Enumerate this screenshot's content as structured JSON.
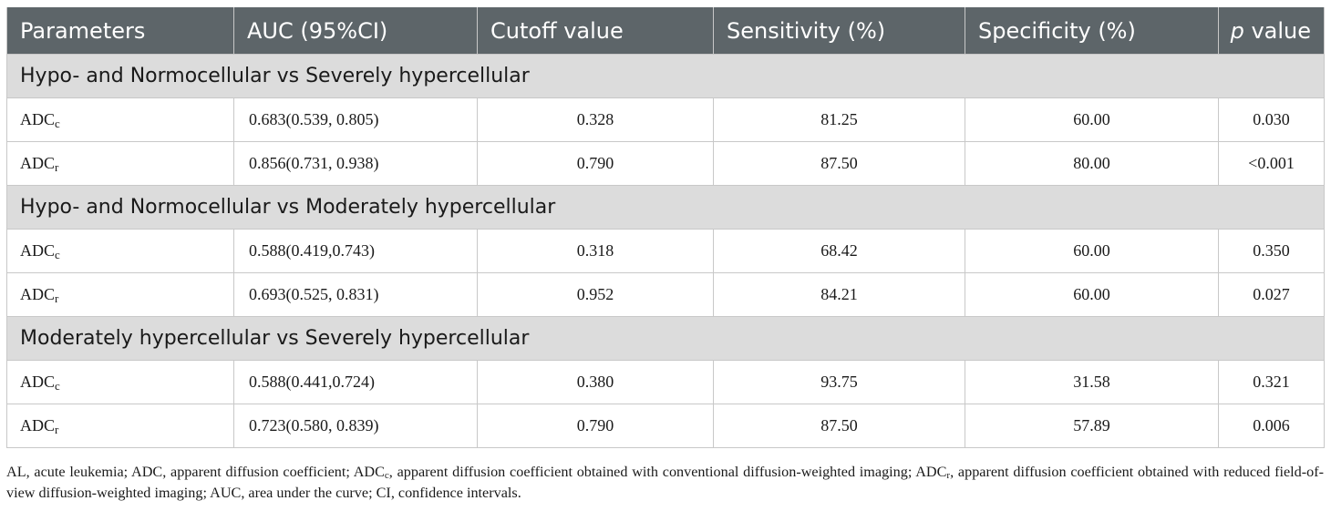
{
  "table": {
    "headers": {
      "parameters": "Parameters",
      "auc": "AUC (95%CI)",
      "cutoff": "Cutoff value",
      "sensitivity": "Sensitivity (%)",
      "specificity": "Specificity (%)",
      "p_italic": "p",
      "p_rest": " value"
    },
    "groups": [
      {
        "title": "Hypo- and Normocellular vs Severely hypercellular",
        "rows": [
          {
            "param": "ADC",
            "sub": "c",
            "auc": "0.683(0.539, 0.805)",
            "cutoff": "0.328",
            "sensitivity": "81.25",
            "specificity": "60.00",
            "p": "0.030"
          },
          {
            "param": "ADC",
            "sub": "r",
            "auc": "0.856(0.731, 0.938)",
            "cutoff": "0.790",
            "sensitivity": "87.50",
            "specificity": "80.00",
            "p": "<0.001"
          }
        ]
      },
      {
        "title": "Hypo- and Normocellular vs Moderately hypercellular",
        "rows": [
          {
            "param": "ADC",
            "sub": "c",
            "auc": "0.588(0.419,0.743)",
            "cutoff": "0.318",
            "sensitivity": "68.42",
            "specificity": "60.00",
            "p": "0.350"
          },
          {
            "param": "ADC",
            "sub": "r",
            "auc": "0.693(0.525, 0.831)",
            "cutoff": "0.952",
            "sensitivity": "84.21",
            "specificity": "60.00",
            "p": "0.027"
          }
        ]
      },
      {
        "title": "Moderately hypercellular vs Severely hypercellular",
        "rows": [
          {
            "param": "ADC",
            "sub": "c",
            "auc": "0.588(0.441,0.724)",
            "cutoff": "0.380",
            "sensitivity": "93.75",
            "specificity": "31.58",
            "p": "0.321"
          },
          {
            "param": "ADC",
            "sub": "r",
            "auc": "0.723(0.580, 0.839)",
            "cutoff": "0.790",
            "sensitivity": "87.50",
            "specificity": "57.89",
            "p": "0.006"
          }
        ]
      }
    ]
  },
  "footnote": {
    "part1": "AL, acute leukemia; ADC, apparent diffusion coefficient; ADC",
    "sub1": "c",
    "part2": ", apparent diffusion coefficient obtained with conventional diffusion-weighted imaging; ADC",
    "sub2": "r",
    "part3": ", apparent diffusion coefficient obtained with reduced field-of-view diffusion-weighted imaging; AUC, area under the curve; CI, confidence intervals."
  }
}
